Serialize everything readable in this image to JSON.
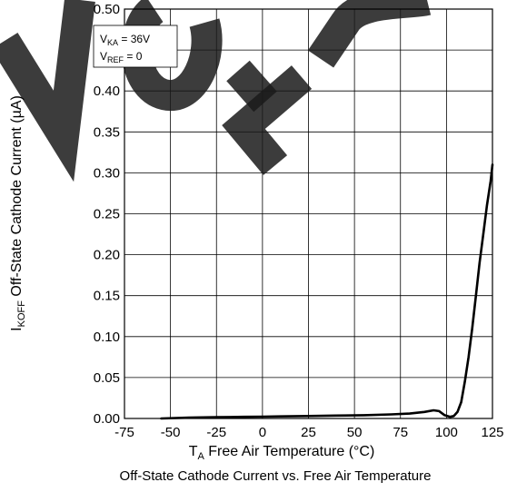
{
  "chart_data": {
    "type": "line",
    "title": "Off-State Cathode Current vs. Free Air Temperature",
    "xlabel": {
      "main": "T",
      "sub": "A",
      "rest": " Free Air Temperature (°C)"
    },
    "ylabel": {
      "main": "I",
      "sub": "KOFF",
      "rest": " Off-State Cathode Current (µA)"
    },
    "xlim": [
      -75,
      125
    ],
    "ylim": [
      0,
      0.5
    ],
    "xticks": [
      -75,
      -50,
      -25,
      0,
      25,
      50,
      75,
      100,
      125
    ],
    "xtick_labels": [
      "-75",
      "-50",
      "-25",
      "0",
      "25",
      "50",
      "75",
      "100",
      "125"
    ],
    "yticks": [
      0,
      0.05,
      0.1,
      0.15,
      0.2,
      0.25,
      0.3,
      0.35,
      0.4,
      0.45,
      0.5
    ],
    "ytick_labels": [
      "0.00",
      "0.05",
      "0.10",
      "0.15",
      "0.20",
      "0.25",
      "0.30",
      "0.35",
      "0.40",
      "0.45",
      "0.50"
    ],
    "grid": true,
    "legend": {
      "placement": "top-left",
      "lines": [
        {
          "main": "V",
          "sub": "KA",
          "rest": " = 36V"
        },
        {
          "main": "V",
          "sub": "REF",
          "rest": " = 0"
        }
      ]
    },
    "series": [
      {
        "color": "#000000",
        "x": [
          -55,
          -40,
          -25,
          -10,
          0,
          10,
          25,
          40,
          55,
          70,
          80,
          88,
          93,
          96,
          99,
          102,
          104,
          106,
          108,
          110,
          112,
          114,
          116,
          118,
          120,
          122,
          124,
          125
        ],
        "y": [
          0.0,
          0.001,
          0.0015,
          0.002,
          0.0022,
          0.0025,
          0.003,
          0.0035,
          0.004,
          0.005,
          0.006,
          0.008,
          0.01,
          0.009,
          0.004,
          0.002,
          0.003,
          0.008,
          0.02,
          0.045,
          0.075,
          0.11,
          0.15,
          0.19,
          0.225,
          0.26,
          0.29,
          0.31
        ]
      }
    ]
  },
  "watermark": {
    "text": "NOT RECOMMENDED FOR NEW DESIGNS",
    "color": "#1a1a1a"
  }
}
